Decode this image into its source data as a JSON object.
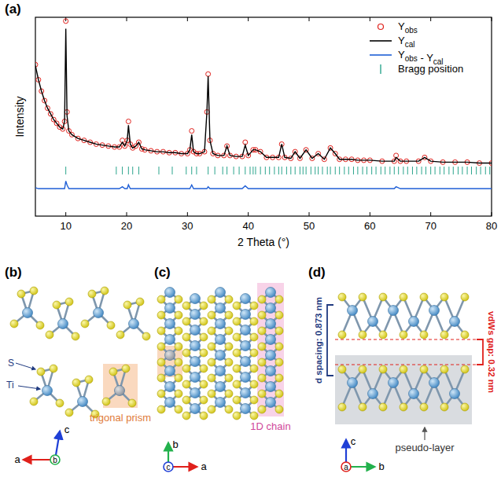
{
  "chart_data": {
    "type": "line",
    "title": "(a)",
    "x_label": "2 Theta (°)",
    "y_label": "Intensity",
    "xlim": [
      5,
      80
    ],
    "xticks": [
      10,
      20,
      30,
      40,
      50,
      60,
      70,
      80
    ],
    "ylim": [
      0,
      105
    ],
    "tick_labels": "x",
    "grid": false,
    "legend": "top-right",
    "x": [
      5,
      5.5,
      6,
      6.5,
      7,
      7.5,
      8,
      8.5,
      9,
      9.5,
      9.8,
      10,
      10.2,
      10.5,
      11,
      12,
      13,
      14,
      15,
      16,
      17,
      18,
      18.8,
      19.3,
      19.7,
      20.1,
      20.3,
      20.6,
      21,
      21.5,
      22,
      22.5,
      23,
      24,
      25,
      26,
      27,
      28,
      29,
      30,
      30.4,
      30.7,
      31,
      31.5,
      32,
      32.8,
      33.2,
      33.4,
      33.7,
      34.2,
      35,
      36,
      36.5,
      37,
      38,
      39,
      39.5,
      40,
      40.8,
      41.2,
      42,
      43,
      44,
      45,
      45.5,
      46,
      47,
      47.7,
      48.5,
      49.5,
      50.5,
      51.5,
      52.5,
      53.5,
      54.3,
      55,
      56,
      57,
      58,
      59,
      60,
      62,
      64,
      64.3,
      65,
      66,
      68,
      69,
      70,
      72,
      74,
      76,
      78,
      80
    ],
    "series": [
      {
        "name": "Yobs",
        "color": "#e0201b",
        "type": "scatter",
        "marker": "circle",
        "values": [
          80,
          72,
          66,
          61,
          57,
          54,
          51,
          49,
          47,
          46,
          50,
          103,
          55,
          45,
          43,
          41,
          40,
          39,
          38,
          37.5,
          37,
          36.5,
          36.5,
          40,
          37,
          40,
          50,
          38,
          36,
          37,
          39,
          35.5,
          35,
          34.5,
          34,
          34,
          33.5,
          33.5,
          33,
          33,
          35,
          45,
          34,
          33,
          33,
          34,
          55,
          75,
          40,
          33,
          32,
          32,
          37,
          32,
          31.5,
          31.5,
          39,
          32,
          35,
          35,
          34,
          31,
          31,
          31,
          38,
          31,
          30.5,
          34,
          30.5,
          35,
          30.5,
          33,
          30,
          36,
          33,
          30,
          30,
          30,
          29.5,
          29.5,
          29.5,
          29,
          29,
          32,
          29,
          29,
          29,
          31,
          29,
          28.5,
          28.5,
          28.5,
          28,
          28
        ]
      },
      {
        "name": "Ycal",
        "color": "#000000",
        "type": "line",
        "line_style": "solid",
        "values": [
          79.5,
          72,
          66,
          61,
          57,
          54,
          51,
          49,
          47,
          46,
          50,
          99,
          53,
          45,
          43,
          41,
          40,
          39,
          38,
          37.5,
          37,
          36.5,
          36.5,
          39,
          37,
          40,
          48,
          38,
          36,
          37,
          39,
          35.5,
          35,
          34.5,
          34,
          34,
          33.5,
          33.5,
          33,
          33,
          35,
          43,
          34,
          33,
          33,
          34,
          55,
          74,
          40,
          33,
          32,
          32,
          37,
          32,
          31.5,
          31.5,
          37.5,
          32,
          35,
          35,
          34,
          31,
          31,
          31,
          38,
          31,
          30.5,
          34,
          30.5,
          35,
          30.5,
          33,
          30,
          36,
          33,
          30,
          30,
          30,
          29.5,
          29.5,
          29.5,
          29,
          29,
          31,
          29,
          29,
          29,
          31,
          29,
          28.5,
          28.5,
          28.5,
          28,
          28
        ]
      },
      {
        "name": "Yobs - Ycal",
        "color": "#1f5fd6",
        "type": "line",
        "line_style": "solid",
        "values": [
          15,
          14.5,
          14.5,
          14.5,
          14.5,
          14.5,
          14.5,
          14.5,
          14.5,
          14.5,
          14.5,
          18.5,
          16.5,
          14.5,
          14.5,
          14.5,
          14.5,
          14.5,
          14.5,
          14.5,
          14.5,
          14.5,
          14.5,
          15.5,
          14.5,
          14.5,
          16.5,
          14.5,
          14.5,
          14.5,
          14.5,
          14.5,
          14.5,
          14.5,
          14.5,
          14.5,
          14.5,
          14.5,
          14.5,
          14.5,
          14.5,
          16.5,
          14.5,
          14.5,
          14.5,
          14.5,
          14.5,
          15.5,
          14.5,
          14.5,
          14.5,
          14.5,
          14.5,
          14.5,
          14.5,
          14.5,
          16,
          14.5,
          14.5,
          14.5,
          14.5,
          14.5,
          14.5,
          14.5,
          14.5,
          14.5,
          14.5,
          14.5,
          14.5,
          14.5,
          14.5,
          14.5,
          14.5,
          14.5,
          14.5,
          14.5,
          14.5,
          14.5,
          14.5,
          14.5,
          14.5,
          14.5,
          14.5,
          15.5,
          14.5,
          14.5,
          14.5,
          14.5,
          14.5,
          14.5,
          14.5,
          14.5,
          14.5,
          14.5
        ]
      },
      {
        "name": "Bragg position",
        "color": "#2ca58d",
        "type": "tick",
        "x": [
          10,
          18.3,
          19.3,
          20.3,
          21.0,
          22.0,
          25.3,
          27.5,
          29.8,
          30.7,
          31.5,
          33.4,
          34.5,
          35.8,
          36.5,
          37.6,
          38.5,
          39.5,
          40.3,
          40.8,
          41.2,
          42.0,
          42.8,
          43.5,
          44.3,
          45.0,
          45.5,
          46.3,
          47.0,
          47.7,
          48.5,
          49.0,
          49.5,
          50.3,
          51.0,
          51.5,
          52.2,
          53.0,
          53.5,
          54.3,
          55.0,
          55.8,
          56.5,
          57.3,
          58.0,
          58.8,
          59.5,
          60.3,
          61.0,
          61.8,
          62.5,
          63.3,
          64.0,
          64.7,
          65.5,
          66.2,
          67.0,
          67.7,
          68.5,
          69.2,
          70.0,
          70.7,
          71.5,
          72.2,
          73.0,
          73.7,
          74.5,
          75.2,
          76.0,
          76.7,
          77.5,
          78.2,
          79.0,
          79.7
        ]
      }
    ]
  },
  "diagrams": {
    "b": {
      "label": "(b)",
      "atoms": [
        "S",
        "Ti"
      ],
      "annotation": "trigonal prism",
      "axes": [
        "a",
        "c",
        "b"
      ]
    },
    "c": {
      "label": "(c)",
      "annotation": "1D chain",
      "axes": [
        "b",
        "a",
        "c"
      ]
    },
    "d": {
      "label": "(d)",
      "d_spacing": "d spacing: 0.873 nm",
      "vdw_gap": "vdWs gap: 0.32 nm",
      "annotation": "pseudo-layer",
      "axes": [
        "c",
        "b",
        "a"
      ]
    }
  }
}
